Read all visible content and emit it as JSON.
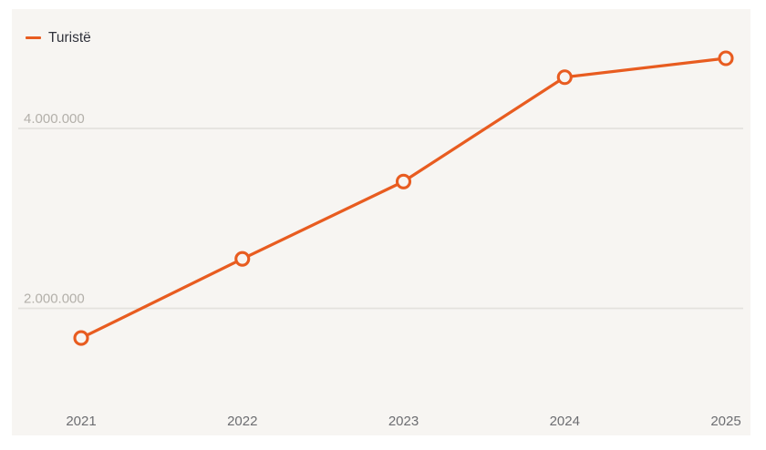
{
  "page": {
    "background_color": "#ffffff",
    "panel_background_color": "#f7f5f2"
  },
  "legend": {
    "series_label": "Turistë",
    "swatch_color": "#e85c20",
    "position": "top-left"
  },
  "chart_data": {
    "type": "line",
    "title": "",
    "xlabel": "",
    "ylabel": "",
    "categories": [
      "2021",
      "2022",
      "2023",
      "2024",
      "2025"
    ],
    "series": [
      {
        "name": "Turistë",
        "color": "#e85c20",
        "marker": "open-circle",
        "values": [
          1670000,
          2550000,
          3410000,
          4570000,
          4780000
        ]
      }
    ],
    "y_gridlines": [
      {
        "value": 2000000,
        "label": "2.000.000"
      },
      {
        "value": 4000000,
        "label": "4.000.000"
      }
    ],
    "ylim": [
      587000,
      5327000
    ],
    "grid": "horizontal-only",
    "gridline_color": "#e4e1dd",
    "legend_position": "top-left"
  }
}
